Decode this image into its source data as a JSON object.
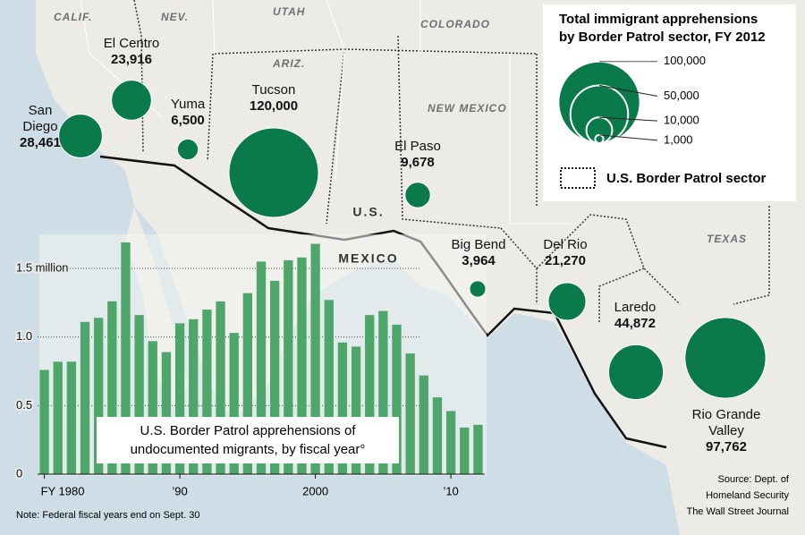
{
  "map": {
    "state_labels": [
      "CALIF.",
      "NEV.",
      "UTAH",
      "COLORADO",
      "ARIZ.",
      "NEW MEXICO",
      "TEXAS"
    ],
    "country_labels": [
      "U.S.",
      "MEXICO"
    ]
  },
  "chart_data": [
    {
      "type": "bubble",
      "title": [
        "Total immigrant apprehensions",
        "by Border Patrol sector, FY 2012"
      ],
      "categories": [
        "San\nDiego",
        "El Centro",
        "Yuma",
        "Tucson",
        "El Paso",
        "Big Bend",
        "Del Rio",
        "Laredo",
        "Rio Grande\nValley"
      ],
      "values": [
        28461,
        23916,
        6500,
        120000,
        9678,
        3964,
        21270,
        44872,
        97762
      ],
      "value_labels": [
        "28,461",
        "23,916",
        "6,500",
        "120,000",
        "9,678",
        "3,964",
        "21,270",
        "44,872",
        "97,762"
      ],
      "color": "#0b7a4a",
      "size_legend": [
        {
          "value": 100000,
          "label": "100,000"
        },
        {
          "value": 50000,
          "label": "50,000"
        },
        {
          "value": 10000,
          "label": "10,000"
        },
        {
          "value": 1000,
          "label": "1,000"
        }
      ],
      "sector_legend": "U.S. Border Patrol sector"
    },
    {
      "type": "bar",
      "title": [
        "U.S. Border Patrol apprehensions of",
        "undocumented migrants, by fiscal year°"
      ],
      "x": [
        1980,
        1981,
        1982,
        1983,
        1984,
        1985,
        1986,
        1987,
        1988,
        1989,
        1990,
        1991,
        1992,
        1993,
        1994,
        1995,
        1996,
        1997,
        1998,
        1999,
        2000,
        2001,
        2002,
        2003,
        2004,
        2005,
        2006,
        2007,
        2008,
        2009,
        2010,
        2011,
        2012
      ],
      "values": [
        0.76,
        0.82,
        0.82,
        1.11,
        1.14,
        1.26,
        1.69,
        1.16,
        0.97,
        0.89,
        1.1,
        1.13,
        1.2,
        1.26,
        1.03,
        1.32,
        1.55,
        1.41,
        1.56,
        1.58,
        1.68,
        1.27,
        0.96,
        0.93,
        1.16,
        1.19,
        1.09,
        0.88,
        0.72,
        0.56,
        0.46,
        0.34,
        0.36
      ],
      "color": "#4ea66a",
      "xlim": [
        1979.5,
        2012.5
      ],
      "xticks": [
        {
          "value": 1980,
          "label": "FY 1980"
        },
        {
          "value": 1990,
          "label": "’90"
        },
        2000,
        {
          "value": 2010,
          "label": "’10"
        }
      ],
      "ylim": [
        0,
        1.7
      ],
      "yticks": [
        0,
        0.5,
        {
          "value": 1.0,
          "label": "1.0"
        },
        {
          "value": 1.5,
          "label": "1.5 million"
        }
      ],
      "grid": true
    }
  ],
  "note": "Note: Federal fiscal years end on Sept. 30",
  "source": [
    "Source: Dept. of",
    "Homeland Security",
    "The Wall Street Journal"
  ]
}
